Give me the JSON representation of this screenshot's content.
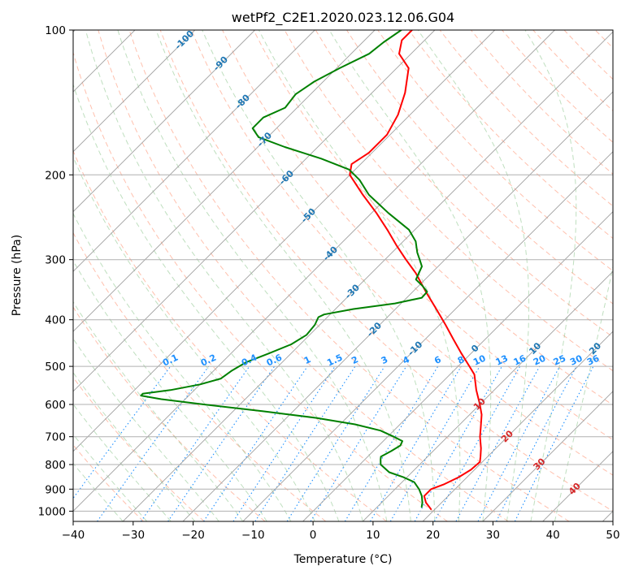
{
  "chart_data": {
    "type": "line",
    "title": "wetPf2_C2E1.2020.023.12.06.G04",
    "xlabel": "Temperature (°C)",
    "ylabel": "Pressure (hPa)",
    "xlim": [
      -40,
      50
    ],
    "ylim": [
      1050,
      100
    ],
    "y_scale": "log",
    "x_ticks": [
      -40,
      -30,
      -20,
      -10,
      0,
      10,
      20,
      30,
      40,
      50
    ],
    "y_ticks": [
      100,
      200,
      300,
      400,
      500,
      600,
      700,
      800,
      900,
      1000
    ],
    "grid": true,
    "skew": "isotherms skewed 45°",
    "colors": {
      "temperature": "#ff0000",
      "dewpoint": "#008000",
      "isotherm": "#a0a0a0",
      "dry_adiabat": "#ff8c69",
      "moist_adiabat": "#7fbf7f",
      "mixing_ratio": "#1e90ff",
      "isotherm_label": "#1f77b4",
      "dry_adiabat_label": "#d62728"
    },
    "series": [
      {
        "key": "temperature",
        "points": [
          {
            "p": 990,
            "t": 19.3
          },
          {
            "p": 960,
            "t": 17.4
          },
          {
            "p": 930,
            "t": 16.0
          },
          {
            "p": 900,
            "t": 16.0
          },
          {
            "p": 880,
            "t": 17.3
          },
          {
            "p": 850,
            "t": 18.6
          },
          {
            "p": 820,
            "t": 19.4
          },
          {
            "p": 790,
            "t": 19.6
          },
          {
            "p": 770,
            "t": 18.8
          },
          {
            "p": 740,
            "t": 17.5
          },
          {
            "p": 700,
            "t": 15.4
          },
          {
            "p": 670,
            "t": 14.0
          },
          {
            "p": 630,
            "t": 12.0
          },
          {
            "p": 600,
            "t": 10.0
          },
          {
            "p": 560,
            "t": 7.0
          },
          {
            "p": 520,
            "t": 4.1
          },
          {
            "p": 500,
            "t": 1.9
          },
          {
            "p": 470,
            "t": -1.6
          },
          {
            "p": 440,
            "t": -5.2
          },
          {
            "p": 410,
            "t": -9.0
          },
          {
            "p": 380,
            "t": -13.2
          },
          {
            "p": 350,
            "t": -17.8
          },
          {
            "p": 320,
            "t": -22.6
          },
          {
            "p": 300,
            "t": -26.5
          },
          {
            "p": 280,
            "t": -30.5
          },
          {
            "p": 260,
            "t": -34.6
          },
          {
            "p": 240,
            "t": -39.2
          },
          {
            "p": 220,
            "t": -44.5
          },
          {
            "p": 200,
            "t": -50.0
          },
          {
            "p": 190,
            "t": -51.5
          },
          {
            "p": 180,
            "t": -50.5
          },
          {
            "p": 165,
            "t": -50.5
          },
          {
            "p": 150,
            "t": -52.0
          },
          {
            "p": 135,
            "t": -54.5
          },
          {
            "p": 120,
            "t": -58.0
          },
          {
            "p": 112,
            "t": -62.0
          },
          {
            "p": 105,
            "t": -63.8
          },
          {
            "p": 100,
            "t": -63.8
          }
        ]
      },
      {
        "key": "dewpoint",
        "points": [
          {
            "p": 980,
            "t": 17.4
          },
          {
            "p": 960,
            "t": 16.8
          },
          {
            "p": 930,
            "t": 15.6
          },
          {
            "p": 900,
            "t": 14.0
          },
          {
            "p": 870,
            "t": 12.0
          },
          {
            "p": 850,
            "t": 9.4
          },
          {
            "p": 830,
            "t": 6.2
          },
          {
            "p": 800,
            "t": 3.5
          },
          {
            "p": 780,
            "t": 2.6
          },
          {
            "p": 770,
            "t": 2.2
          },
          {
            "p": 750,
            "t": 3.0
          },
          {
            "p": 730,
            "t": 3.6
          },
          {
            "p": 715,
            "t": 3.2
          },
          {
            "p": 700,
            "t": 1.0
          },
          {
            "p": 680,
            "t": -2.2
          },
          {
            "p": 660,
            "t": -7.5
          },
          {
            "p": 640,
            "t": -15.0
          },
          {
            "p": 620,
            "t": -25.0
          },
          {
            "p": 600,
            "t": -36.0
          },
          {
            "p": 585,
            "t": -44.0
          },
          {
            "p": 575,
            "t": -48.0
          },
          {
            "p": 570,
            "t": -48.0
          },
          {
            "p": 560,
            "t": -44.0
          },
          {
            "p": 545,
            "t": -40.0
          },
          {
            "p": 530,
            "t": -37.5
          },
          {
            "p": 510,
            "t": -37.0
          },
          {
            "p": 490,
            "t": -36.0
          },
          {
            "p": 470,
            "t": -33.7
          },
          {
            "p": 450,
            "t": -31.5
          },
          {
            "p": 430,
            "t": -30.5
          },
          {
            "p": 410,
            "t": -30.8
          },
          {
            "p": 395,
            "t": -31.5
          },
          {
            "p": 390,
            "t": -31.0
          },
          {
            "p": 380,
            "t": -27.0
          },
          {
            "p": 370,
            "t": -21.0
          },
          {
            "p": 360,
            "t": -17.5
          },
          {
            "p": 350,
            "t": -17.6
          },
          {
            "p": 340,
            "t": -19.4
          },
          {
            "p": 330,
            "t": -21.5
          },
          {
            "p": 310,
            "t": -22.7
          },
          {
            "p": 300,
            "t": -24.2
          },
          {
            "p": 290,
            "t": -25.8
          },
          {
            "p": 275,
            "t": -27.9
          },
          {
            "p": 260,
            "t": -31.0
          },
          {
            "p": 240,
            "t": -37.2
          },
          {
            "p": 220,
            "t": -43.5
          },
          {
            "p": 205,
            "t": -47.5
          },
          {
            "p": 195,
            "t": -51.0
          },
          {
            "p": 185,
            "t": -57.5
          },
          {
            "p": 175,
            "t": -65.5
          },
          {
            "p": 167,
            "t": -71.5
          },
          {
            "p": 160,
            "t": -74.0
          },
          {
            "p": 152,
            "t": -74.0
          },
          {
            "p": 145,
            "t": -72.0
          },
          {
            "p": 136,
            "t": -72.5
          },
          {
            "p": 128,
            "t": -71.5
          },
          {
            "p": 120,
            "t": -69.5
          },
          {
            "p": 112,
            "t": -67.0
          },
          {
            "p": 106,
            "t": -66.5
          },
          {
            "p": 100,
            "t": -65.6
          }
        ]
      }
    ],
    "isotherm_labels": [
      "-100",
      "-90",
      "-80",
      "-70",
      "-60",
      "-50",
      "-40",
      "-30",
      "-20",
      "-10",
      "0",
      "10",
      "20",
      "30",
      "40"
    ],
    "mixing_ratio_labels": [
      "0.1",
      "0.2",
      "0.4",
      "0.6",
      "1",
      "1.5",
      "2",
      "3",
      "4",
      "6",
      "8",
      "10",
      "13",
      "16",
      "20",
      "25",
      "30",
      "36"
    ]
  }
}
